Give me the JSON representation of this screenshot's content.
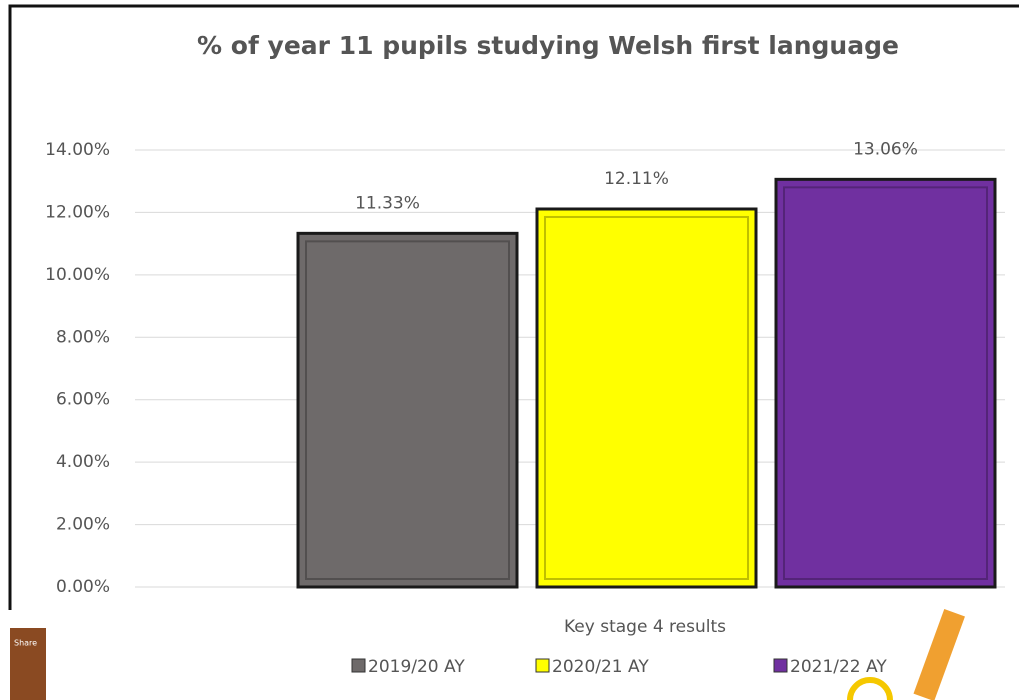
{
  "chart_data": {
    "type": "bar",
    "title": "% of year 11 pupils studying Welsh first language",
    "x_label": "Key stage 4 results",
    "categories": [
      null
    ],
    "series": [
      {
        "name": "2019/20 AY",
        "color": "#6e6a6a",
        "values": [
          11.33
        ],
        "value_labels": [
          "11.33%"
        ]
      },
      {
        "name": "2020/21 AY",
        "color": "#ffff00",
        "values": [
          12.11
        ],
        "value_labels": [
          "12.11%"
        ]
      },
      {
        "name": "2021/22 AY",
        "color": "#7030a0",
        "values": [
          13.06
        ],
        "value_labels": [
          "13.06%"
        ]
      }
    ],
    "ylim": [
      0,
      14
    ],
    "yticks": [
      {
        "value": 0,
        "label": "0.00%"
      },
      {
        "value": 2,
        "label": "2.00%"
      },
      {
        "value": 4,
        "label": "4.00%"
      },
      {
        "value": 6,
        "label": "6.00%"
      },
      {
        "value": 8,
        "label": "8.00%"
      },
      {
        "value": 10,
        "label": "10.00%"
      },
      {
        "value": 12,
        "label": "12.00%"
      },
      {
        "value": 14,
        "label": "14.00%"
      }
    ],
    "grid": true,
    "legend": "bottom"
  },
  "overlay": {
    "share": "Share"
  }
}
